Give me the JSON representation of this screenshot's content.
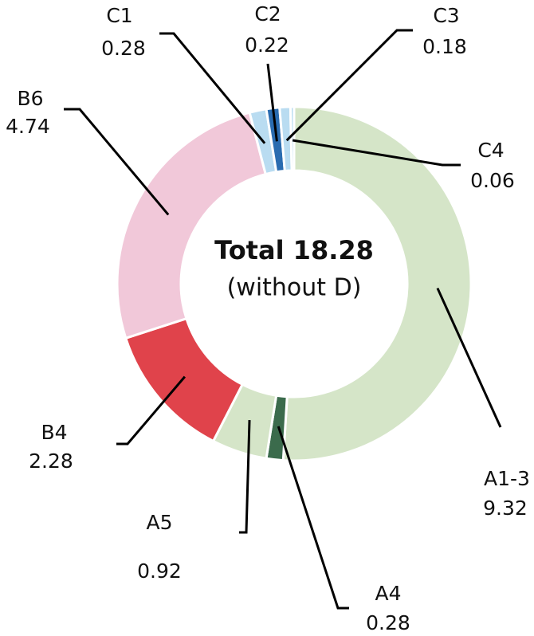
{
  "chart_data": {
    "type": "donut",
    "center_title": "Total 18.28",
    "center_subtitle": "(without D)",
    "categories": [
      "A1-3",
      "A4",
      "A5",
      "B4",
      "B6",
      "C1",
      "C2",
      "C3",
      "C4"
    ],
    "values": [
      9.32,
      0.28,
      0.92,
      2.28,
      4.74,
      0.28,
      0.22,
      0.18,
      0.06
    ],
    "colors": [
      "#d5e5c8",
      "#3b6b4c",
      "#d5e5c8",
      "#e0434b",
      "#f1c8d9",
      "#b9dcf1",
      "#2a6cb0",
      "#b9dcf1",
      "#b9dcf1"
    ]
  }
}
